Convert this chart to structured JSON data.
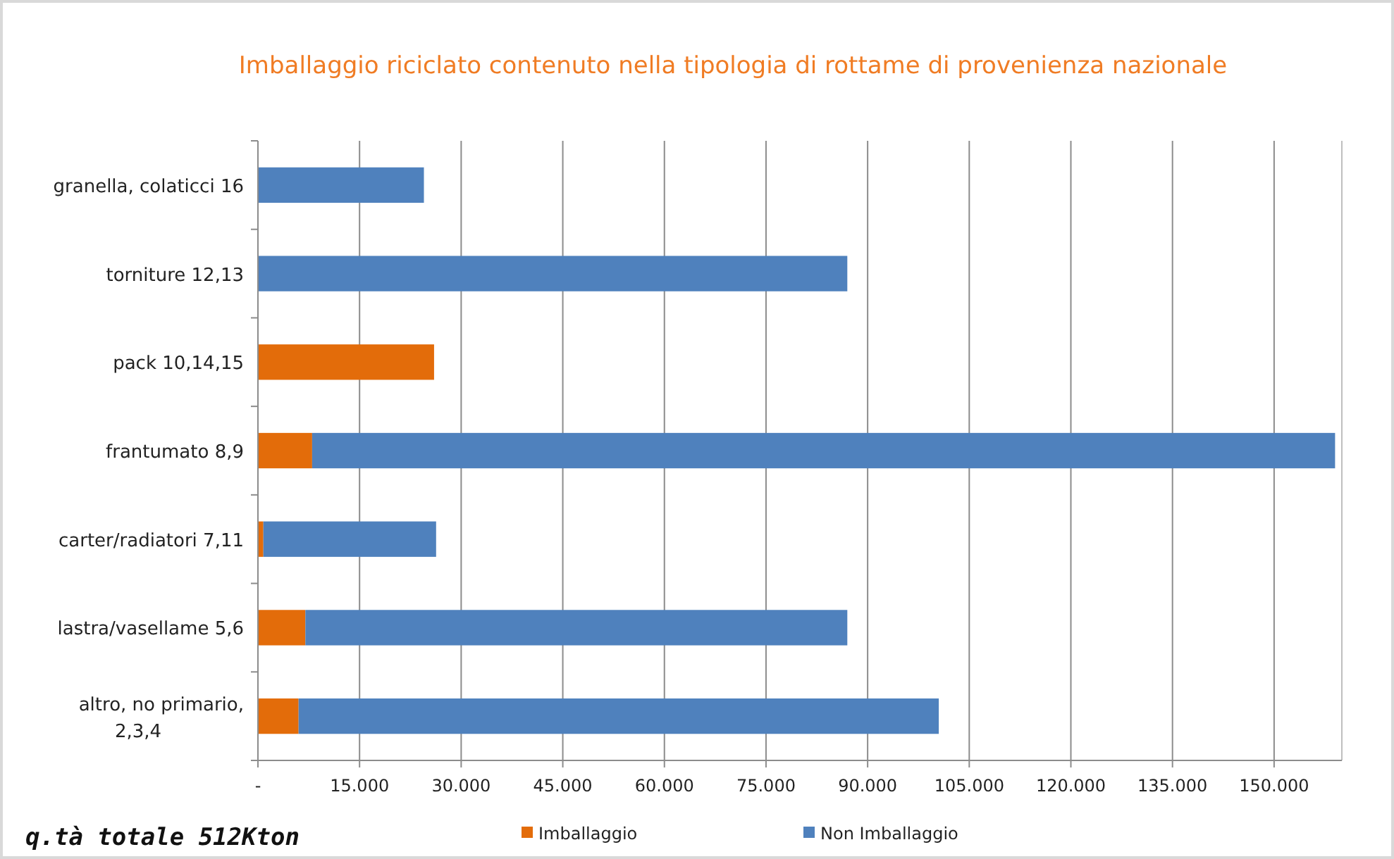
{
  "chart_data": {
    "type": "bar",
    "orientation": "horizontal",
    "stacked": true,
    "title": "Imballaggio riciclato contenuto nella tipologia di rottame di provenienza nazionale",
    "categories": [
      "granella, colaticci 16",
      "torniture 12,13",
      "pack 10,14,15",
      "frantumato 8,9",
      "carter/radiatori 7,11",
      "lastra/vasellame 5,6",
      "altro, no primario, 2,3,4"
    ],
    "series": [
      {
        "name": "Imballaggio",
        "color": "#e36c0a",
        "values": [
          0,
          0,
          26000,
          8000,
          800,
          7000,
          6000
        ]
      },
      {
        "name": "Non Imballaggio",
        "color": "#4f81bd",
        "values": [
          24500,
          87000,
          0,
          151000,
          25500,
          80000,
          94500
        ]
      }
    ],
    "xlim": [
      0,
      160000
    ],
    "xticks": [
      {
        "value": 0,
        "label": "-"
      },
      {
        "value": 15000,
        "label": "15.000"
      },
      {
        "value": 30000,
        "label": "30.000"
      },
      {
        "value": 45000,
        "label": "45.000"
      },
      {
        "value": 60000,
        "label": "60.000"
      },
      {
        "value": 75000,
        "label": "75.000"
      },
      {
        "value": 90000,
        "label": "90.000"
      },
      {
        "value": 105000,
        "label": "105.000"
      },
      {
        "value": 120000,
        "label": "120.000"
      },
      {
        "value": 135000,
        "label": "135.000"
      },
      {
        "value": 150000,
        "label": "150.000"
      }
    ],
    "grid": "x",
    "legend": "bottom",
    "annotations": [
      "q.tà totale 512Kton"
    ]
  }
}
